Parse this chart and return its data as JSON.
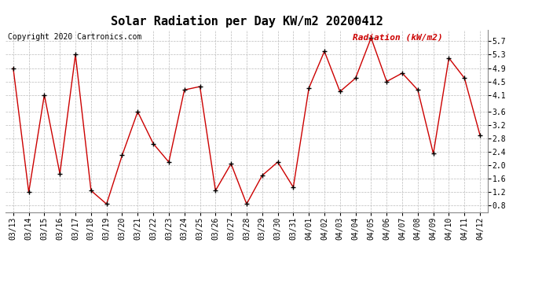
{
  "title": "Solar Radiation per Day KW/m2 20200412",
  "copyright": "Copyright 2020 Cartronics.com",
  "legend_label": "Radiation (kW/m2)",
  "dates": [
    "03/13",
    "03/14",
    "03/15",
    "03/16",
    "03/17",
    "03/18",
    "03/19",
    "03/20",
    "03/21",
    "03/22",
    "03/23",
    "03/24",
    "03/25",
    "03/26",
    "03/27",
    "03/28",
    "03/29",
    "03/30",
    "03/31",
    "04/01",
    "04/02",
    "04/03",
    "04/04",
    "04/05",
    "04/06",
    "04/07",
    "04/08",
    "04/09",
    "04/10",
    "04/11",
    "04/12"
  ],
  "values": [
    4.9,
    1.2,
    4.1,
    1.75,
    5.3,
    1.25,
    0.85,
    2.3,
    3.6,
    2.65,
    2.1,
    4.25,
    4.35,
    1.25,
    2.05,
    0.85,
    1.7,
    2.1,
    1.35,
    4.3,
    5.4,
    4.2,
    4.6,
    5.8,
    4.5,
    4.75,
    4.25,
    2.35,
    5.2,
    4.6,
    2.9
  ],
  "line_color": "#cc0000",
  "marker_color": "#000000",
  "background_color": "#ffffff",
  "grid_color": "#bbbbbb",
  "title_color": "#000000",
  "copyright_color": "#000000",
  "legend_color": "#cc0000",
  "ylim": [
    0.6,
    6.05
  ],
  "yticks": [
    0.8,
    1.2,
    1.6,
    2.0,
    2.4,
    2.8,
    3.2,
    3.6,
    4.1,
    4.5,
    4.9,
    5.3,
    5.7
  ],
  "title_fontsize": 11,
  "axis_fontsize": 7,
  "copyright_fontsize": 7,
  "legend_fontsize": 8
}
